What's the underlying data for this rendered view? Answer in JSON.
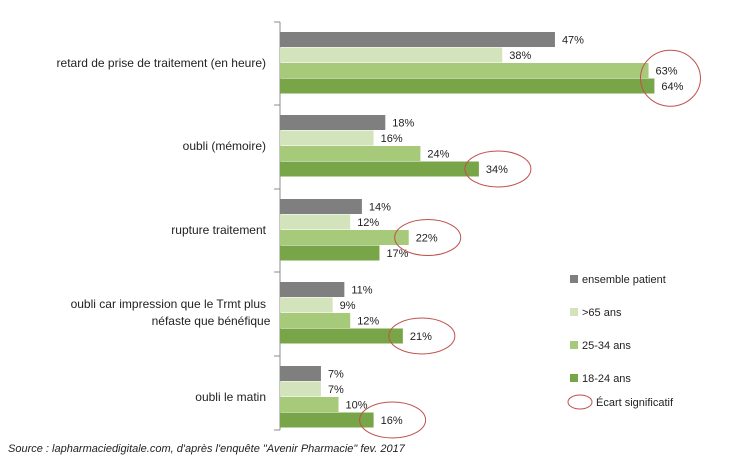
{
  "chart_data": {
    "type": "bar",
    "orientation": "horizontal",
    "categories": [
      "retard de prise de traitement (en heure)",
      "oubli (mémoire)",
      "rupture traitement",
      "oubli car impression que le Trmt plus néfaste que bénéfique",
      "oubli le matin"
    ],
    "series": [
      {
        "name": "ensemble patient",
        "color": "#7f7f7f",
        "values": [
          47,
          18,
          14,
          11,
          7
        ],
        "labels": [
          "47%",
          "18%",
          "14%",
          "11%",
          "7%"
        ]
      },
      {
        "name": ">65 ans",
        "color": "#d3e4bd",
        "values": [
          38,
          16,
          12,
          9,
          7
        ],
        "labels": [
          "38%",
          "16%",
          "12%",
          "9%",
          "7%"
        ]
      },
      {
        "name": "25-34 ans",
        "color": "#a6c97a",
        "values": [
          63,
          24,
          22,
          12,
          10
        ],
        "labels": [
          "63%",
          "24%",
          "22%",
          "12%",
          "10%"
        ]
      },
      {
        "name": "18-24 ans",
        "color": "#77a547",
        "values": [
          64,
          34,
          17,
          21,
          16
        ],
        "labels": [
          "64%",
          "34%",
          "17%",
          "21%",
          "16%"
        ]
      }
    ],
    "significant": [
      {
        "category": 0,
        "series": [
          2,
          3
        ]
      },
      {
        "category": 1,
        "series": [
          3
        ]
      },
      {
        "category": 2,
        "series": [
          2
        ]
      },
      {
        "category": 3,
        "series": [
          3
        ]
      },
      {
        "category": 4,
        "series": [
          3
        ]
      }
    ],
    "significance_legend": "Écart significatif",
    "significance_color": "#c0504d",
    "xlim": [
      0,
      80
    ],
    "grid": false,
    "legend_position": "right"
  },
  "source_note": "Source : lapharmaciedigitale.com, d'après l'enquête \"Avenir Pharmacie\" fev. 2017"
}
